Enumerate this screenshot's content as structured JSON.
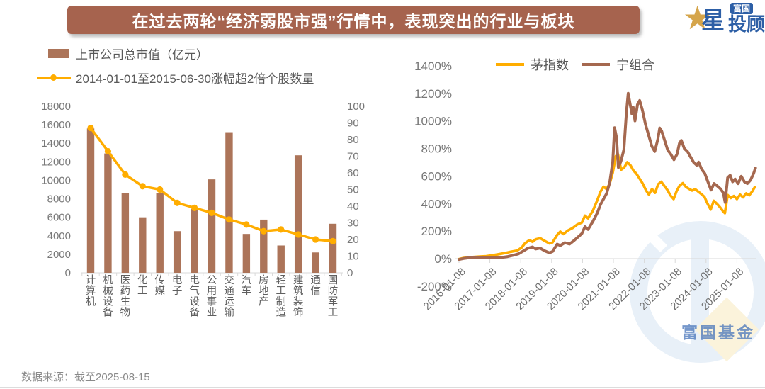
{
  "title": {
    "text": "在过去两轮“经济弱股市强”行情中，表现突出的行业与板块"
  },
  "logo": {
    "star_char": "★",
    "xing": "星",
    "badge": "富国",
    "tougu": "投顾"
  },
  "watermark": {
    "text": "富国基金"
  },
  "footer": {
    "source": "数据来源：截至2025-08-15"
  },
  "colors": {
    "title_bar": "#A6634E",
    "bar": "#AC7459",
    "orange": "#FFAD00",
    "brown_line": "#A5684F",
    "axis_text": "#787878",
    "axis_line": "#D9D9D9",
    "legend_text": "#595959",
    "brand_blue": "#2D5FA6",
    "brand_gold": "#D5A54B",
    "watermark_blue": "#E8F0F8"
  },
  "chart_data": [
    {
      "type": "bar",
      "title": "",
      "categories": [
        "计算机",
        "机械设备",
        "医药生物",
        "化工",
        "传媒",
        "电子",
        "电气设备",
        "公用事业",
        "交通运输",
        "汽车",
        "房地产",
        "轻工制造",
        "建筑装饰",
        "通信",
        "国防军工"
      ],
      "series": [
        {
          "name": "上市公司总市值（亿元）",
          "kind": "bar",
          "axis": "left",
          "color": "#AC7459",
          "values": [
            15600,
            12900,
            8600,
            6000,
            8600,
            4500,
            6900,
            10100,
            15200,
            4200,
            5750,
            2950,
            12700,
            2200,
            5300
          ]
        },
        {
          "name": "2014-01-01至2015-06-30涨幅超2倍个股数量",
          "kind": "line",
          "axis": "right",
          "color": "#FFAD00",
          "values": [
            87,
            73,
            59,
            52,
            50,
            42,
            39,
            36,
            32,
            29,
            25,
            26,
            23,
            20,
            19
          ]
        }
      ],
      "left_axis": {
        "min": 0,
        "max": 18000,
        "step": 2000,
        "ticks": [
          0,
          2000,
          4000,
          6000,
          8000,
          10000,
          12000,
          14000,
          16000,
          18000
        ]
      },
      "right_axis": {
        "min": 0,
        "max": 100,
        "step": 10,
        "ticks": [
          0,
          10,
          20,
          30,
          40,
          50,
          60,
          70,
          80,
          90,
          100
        ]
      },
      "grid": false,
      "legend_position": "top-left"
    },
    {
      "type": "line",
      "title": "",
      "x_labels": [
        "2016-01-08",
        "2017-01-08",
        "2018-01-08",
        "2019-01-08",
        "2020-01-08",
        "2021-01-08",
        "2022-01-08",
        "2023-01-08",
        "2024-01-08",
        "2025-01-08"
      ],
      "y_axis": {
        "min": -200,
        "max": 1400,
        "step": 200,
        "suffix": "%",
        "ticks": [
          "1400%",
          "1200%",
          "1000%",
          "800%",
          "600%",
          "400%",
          "200%",
          "0%",
          "-200%"
        ]
      },
      "x_range": [
        2016.02,
        2025.62
      ],
      "grid": false,
      "legend_position": "top-center",
      "series": [
        {
          "name": "茅指数",
          "color": "#FFAD00",
          "width": 3.6,
          "points": [
            [
              2016.02,
              -3
            ],
            [
              2016.15,
              4
            ],
            [
              2016.3,
              8
            ],
            [
              2016.5,
              12
            ],
            [
              2016.7,
              15
            ],
            [
              2016.9,
              18
            ],
            [
              2017.1,
              24
            ],
            [
              2017.3,
              32
            ],
            [
              2017.5,
              40
            ],
            [
              2017.7,
              50
            ],
            [
              2017.9,
              58
            ],
            [
              2018.05,
              80
            ],
            [
              2018.15,
              110
            ],
            [
              2018.3,
              135
            ],
            [
              2018.4,
              122
            ],
            [
              2018.5,
              140
            ],
            [
              2018.65,
              148
            ],
            [
              2018.8,
              128
            ],
            [
              2018.95,
              110
            ],
            [
              2019.05,
              118
            ],
            [
              2019.2,
              172
            ],
            [
              2019.3,
              196
            ],
            [
              2019.4,
              178
            ],
            [
              2019.55,
              205
            ],
            [
              2019.7,
              222
            ],
            [
              2019.85,
              248
            ],
            [
              2020.0,
              262
            ],
            [
              2020.1,
              312
            ],
            [
              2020.2,
              292
            ],
            [
              2020.35,
              345
            ],
            [
              2020.5,
              425
            ],
            [
              2020.6,
              485
            ],
            [
              2020.7,
              522
            ],
            [
              2020.8,
              505
            ],
            [
              2020.9,
              545
            ],
            [
              2021.0,
              625
            ],
            [
              2021.1,
              745
            ],
            [
              2021.17,
              758
            ],
            [
              2021.27,
              645
            ],
            [
              2021.37,
              662
            ],
            [
              2021.47,
              700
            ],
            [
              2021.57,
              678
            ],
            [
              2021.67,
              640
            ],
            [
              2021.77,
              615
            ],
            [
              2021.87,
              580
            ],
            [
              2021.97,
              545
            ],
            [
              2022.07,
              498
            ],
            [
              2022.17,
              465
            ],
            [
              2022.27,
              505
            ],
            [
              2022.37,
              478
            ],
            [
              2022.47,
              540
            ],
            [
              2022.57,
              558
            ],
            [
              2022.67,
              528
            ],
            [
              2022.77,
              498
            ],
            [
              2022.87,
              458
            ],
            [
              2022.97,
              432
            ],
            [
              2023.07,
              492
            ],
            [
              2023.17,
              532
            ],
            [
              2023.27,
              548
            ],
            [
              2023.37,
              520
            ],
            [
              2023.47,
              506
            ],
            [
              2023.57,
              494
            ],
            [
              2023.67,
              504
            ],
            [
              2023.77,
              486
            ],
            [
              2023.87,
              468
            ],
            [
              2023.97,
              448
            ],
            [
              2024.07,
              398
            ],
            [
              2024.17,
              356
            ],
            [
              2024.27,
              420
            ],
            [
              2024.37,
              398
            ],
            [
              2024.47,
              374
            ],
            [
              2024.57,
              344
            ],
            [
              2024.63,
              330
            ],
            [
              2024.72,
              462
            ],
            [
              2024.82,
              440
            ],
            [
              2024.92,
              455
            ],
            [
              2025.02,
              432
            ],
            [
              2025.12,
              465
            ],
            [
              2025.22,
              445
            ],
            [
              2025.32,
              474
            ],
            [
              2025.42,
              460
            ],
            [
              2025.52,
              490
            ],
            [
              2025.6,
              520
            ]
          ]
        },
        {
          "name": "宁组合",
          "color": "#A5684F",
          "width": 4,
          "points": [
            [
              2016.02,
              -6
            ],
            [
              2016.2,
              2
            ],
            [
              2016.4,
              8
            ],
            [
              2016.6,
              5
            ],
            [
              2016.8,
              10
            ],
            [
              2017.0,
              8
            ],
            [
              2017.2,
              5
            ],
            [
              2017.4,
              9
            ],
            [
              2017.6,
              15
            ],
            [
              2017.8,
              25
            ],
            [
              2017.95,
              35
            ],
            [
              2018.1,
              55
            ],
            [
              2018.25,
              75
            ],
            [
              2018.4,
              85
            ],
            [
              2018.5,
              70
            ],
            [
              2018.65,
              76
            ],
            [
              2018.8,
              56
            ],
            [
              2018.95,
              42
            ],
            [
              2019.05,
              52
            ],
            [
              2019.2,
              105
            ],
            [
              2019.3,
              95
            ],
            [
              2019.45,
              116
            ],
            [
              2019.6,
              106
            ],
            [
              2019.75,
              132
            ],
            [
              2019.9,
              162
            ],
            [
              2020.0,
              182
            ],
            [
              2020.1,
              232
            ],
            [
              2020.2,
              212
            ],
            [
              2020.35,
              268
            ],
            [
              2020.5,
              332
            ],
            [
              2020.6,
              392
            ],
            [
              2020.7,
              432
            ],
            [
              2020.8,
              472
            ],
            [
              2020.9,
              552
            ],
            [
              2021.0,
              705
            ],
            [
              2021.06,
              950
            ],
            [
              2021.12,
              880
            ],
            [
              2021.18,
              662
            ],
            [
              2021.26,
              705
            ],
            [
              2021.36,
              790
            ],
            [
              2021.44,
              1055
            ],
            [
              2021.5,
              1200
            ],
            [
              2021.56,
              1125
            ],
            [
              2021.62,
              1050
            ],
            [
              2021.66,
              1100
            ],
            [
              2021.72,
              1000
            ],
            [
              2021.8,
              1118
            ],
            [
              2021.87,
              1148
            ],
            [
              2021.96,
              1078
            ],
            [
              2022.06,
              975
            ],
            [
              2022.16,
              898
            ],
            [
              2022.26,
              818
            ],
            [
              2022.36,
              778
            ],
            [
              2022.46,
              868
            ],
            [
              2022.52,
              948
            ],
            [
              2022.58,
              928
            ],
            [
              2022.68,
              858
            ],
            [
              2022.78,
              788
            ],
            [
              2022.88,
              758
            ],
            [
              2022.98,
              718
            ],
            [
              2023.08,
              758
            ],
            [
              2023.16,
              838
            ],
            [
              2023.22,
              858
            ],
            [
              2023.32,
              798
            ],
            [
              2023.42,
              778
            ],
            [
              2023.52,
              738
            ],
            [
              2023.62,
              698
            ],
            [
              2023.72,
              678
            ],
            [
              2023.78,
              700
            ],
            [
              2023.88,
              648
            ],
            [
              2023.98,
              618
            ],
            [
              2024.08,
              558
            ],
            [
              2024.18,
              498
            ],
            [
              2024.28,
              545
            ],
            [
              2024.38,
              528
            ],
            [
              2024.48,
              508
            ],
            [
              2024.58,
              478
            ],
            [
              2024.64,
              408
            ],
            [
              2024.72,
              588
            ],
            [
              2024.8,
              605
            ],
            [
              2024.88,
              558
            ],
            [
              2024.96,
              578
            ],
            [
              2025.06,
              545
            ],
            [
              2025.16,
              598
            ],
            [
              2025.26,
              558
            ],
            [
              2025.36,
              545
            ],
            [
              2025.46,
              570
            ],
            [
              2025.56,
              618
            ],
            [
              2025.62,
              658
            ]
          ]
        }
      ]
    }
  ]
}
